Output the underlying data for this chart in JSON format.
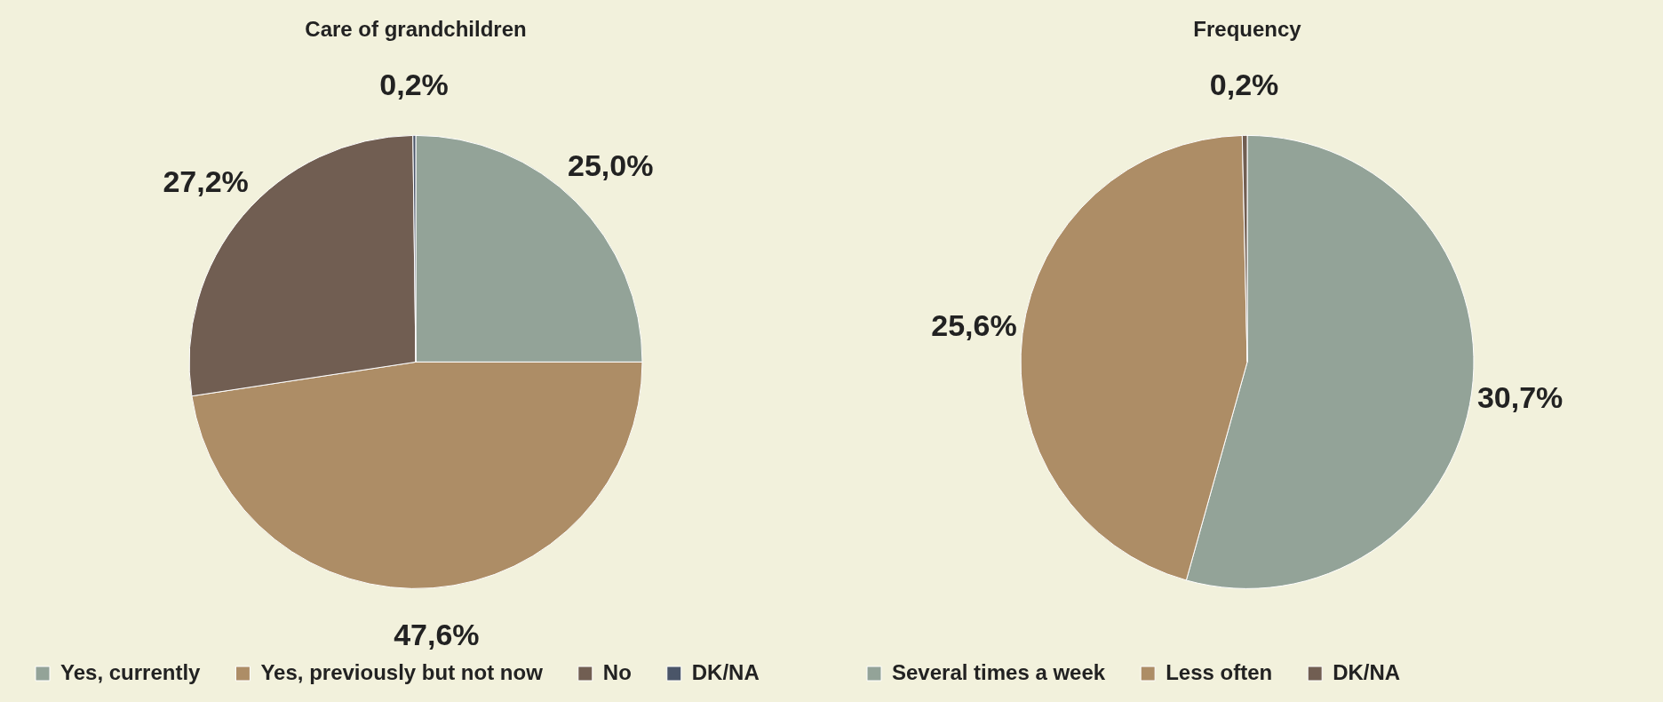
{
  "chart_data": [
    {
      "type": "pie",
      "title": "Care of grandchildren",
      "categories": [
        "Yes, currently",
        "Yes, previously but not now",
        "No",
        "DK/NA"
      ],
      "values": [
        25.0,
        47.6,
        27.2,
        0.2
      ],
      "value_labels": [
        "25,0%",
        "47,6%",
        "27,2%",
        "0,2%"
      ],
      "colors": [
        "#93a398",
        "#ad8d66",
        "#715e52",
        "#4a5568"
      ],
      "legend": "bottom"
    },
    {
      "type": "pie",
      "title": "Frequency",
      "categories": [
        "Several times a week",
        "Less often",
        "DK/NA"
      ],
      "values": [
        30.7,
        25.6,
        0.2
      ],
      "value_labels": [
        "30,7%",
        "25,6%",
        "0,2%"
      ],
      "colors": [
        "#93a398",
        "#ad8d66",
        "#715e52"
      ],
      "legend": "bottom"
    }
  ]
}
